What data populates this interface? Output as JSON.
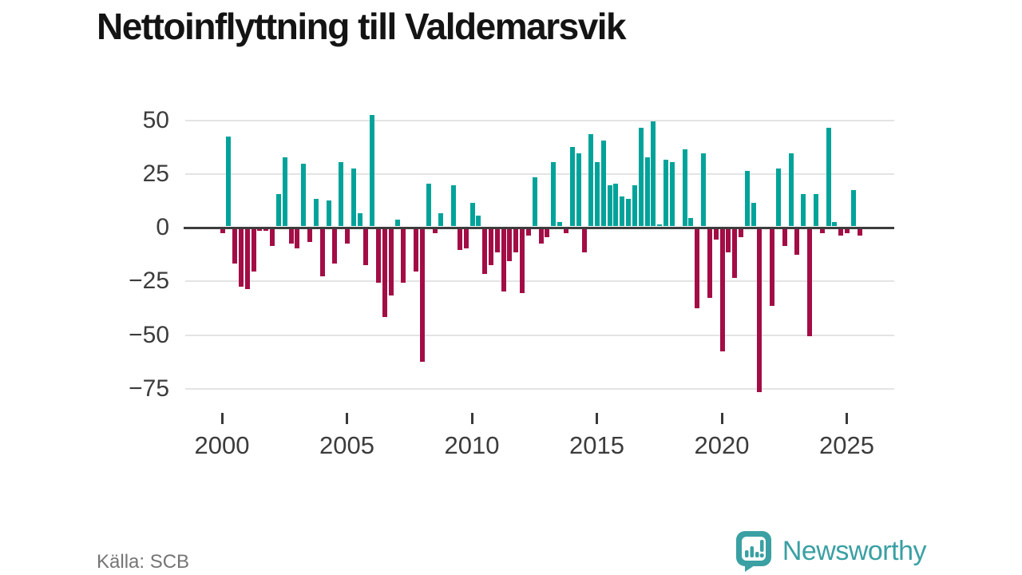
{
  "title": "Nettoinflyttning till Valdemarsvik",
  "source": "Källa: SCB",
  "branding": {
    "name": "Newsworthy"
  },
  "colors": {
    "positive_bar": "#00a39a",
    "negative_bar": "#a30d45",
    "zero_axis": "#3d3d3d",
    "gridline": "#e4e4e4",
    "axis_text": "#3c3c3c",
    "title_text": "#141414",
    "source_text": "#757575",
    "brand_teal": "#3aa0a3"
  },
  "chart_data": {
    "type": "bar",
    "title": "Nettoinflyttning till Valdemarsvik",
    "frequency": "quarterly",
    "start": {
      "year": 2000,
      "quarter": 1
    },
    "end": {
      "year": 2025,
      "quarter": 3
    },
    "values": [
      -2,
      42,
      -16,
      -27,
      -28,
      -20,
      -1,
      -1,
      -8,
      15,
      32,
      -7,
      -9,
      29,
      -6,
      13,
      -22,
      12,
      -16,
      30,
      -7,
      27,
      6,
      -17,
      52,
      -25,
      -41,
      -31,
      3,
      -25,
      0,
      -20,
      -62,
      20,
      -2,
      6,
      0,
      19,
      -10,
      -9,
      11,
      5,
      -21,
      -17,
      -11,
      -29,
      -15,
      -11,
      -30,
      -3,
      23,
      -7,
      -4,
      30,
      2,
      -2,
      37,
      34,
      -11,
      43,
      30,
      40,
      19,
      20,
      14,
      13,
      19,
      46,
      32,
      49,
      1,
      31,
      30,
      0,
      36,
      4,
      -37,
      34,
      -32,
      -5,
      -57,
      -11,
      -23,
      -4,
      26,
      11,
      -76,
      0,
      -36,
      27,
      -8,
      34,
      -12,
      15,
      -50,
      15,
      -2,
      46,
      2,
      -3,
      -2,
      17,
      -3
    ],
    "x_tick_labels": [
      "2000",
      "2005",
      "2010",
      "2015",
      "2020",
      "2025"
    ],
    "x_tick_every_quarters": 20,
    "y_tick_values": [
      50,
      25,
      0,
      -25,
      -50,
      -75
    ],
    "y_tick_labels": [
      "50",
      "25",
      "0",
      "−25",
      "−50",
      "−75"
    ],
    "ylim": [
      -80,
      56
    ],
    "grid": "horizontal",
    "legend": "none"
  }
}
